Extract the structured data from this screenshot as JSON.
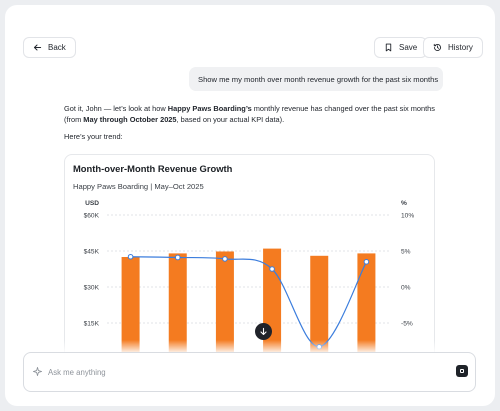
{
  "header": {
    "back_label": "Back",
    "save_label": "Save",
    "history_label": "History"
  },
  "conversation": {
    "user_message": "Show me my month over month revenue growth for the past six months",
    "reply": {
      "intro_part1": "Got it, John — let’s look at how ",
      "company": "Happy Paws Boarding’s",
      "intro_part2": " monthly revenue has changed over the past six months (from ",
      "period": "May through October 2025",
      "intro_part3": ", based on your actual KPI data).",
      "trend_line": "Here’s your trend:"
    }
  },
  "chart_data": {
    "type": "bar",
    "title": "Month-over-Month Revenue Growth",
    "subtitle": "Happy Paws Boarding | May–Oct 2025",
    "left_axis": {
      "label": "USD",
      "ticks": [
        "$60K",
        "$45K",
        "$30K",
        "$15K"
      ],
      "tick_values": [
        60000,
        45000,
        30000,
        15000
      ]
    },
    "right_axis": {
      "label": "%",
      "ticks": [
        "10%",
        "5%",
        "0%",
        "-5%"
      ],
      "tick_values": [
        10,
        5,
        0,
        -5
      ]
    },
    "grid": true,
    "series": [
      {
        "name": "",
        "type": "bar",
        "axis": "left",
        "values": [
          42500,
          44000,
          44800,
          46000,
          43000,
          44000
        ],
        "color": "#f47b20"
      },
      {
        "name": "",
        "type": "line",
        "axis": "right",
        "values": [
          4.2,
          4.1,
          3.9,
          2.5,
          -8.3,
          3.5
        ],
        "color": "#3b7ddd"
      }
    ]
  },
  "composer": {
    "placeholder": "Ask me anything"
  },
  "icons": {
    "back": "arrow-left-icon",
    "save": "bookmark-icon",
    "history": "history-icon",
    "scroll": "arrow-down-icon",
    "composer": "sparkle-icon",
    "send": "stop-icon"
  },
  "colors": {
    "bar": "#f47b20",
    "line": "#3b7ddd",
    "dark": "#20232a"
  }
}
